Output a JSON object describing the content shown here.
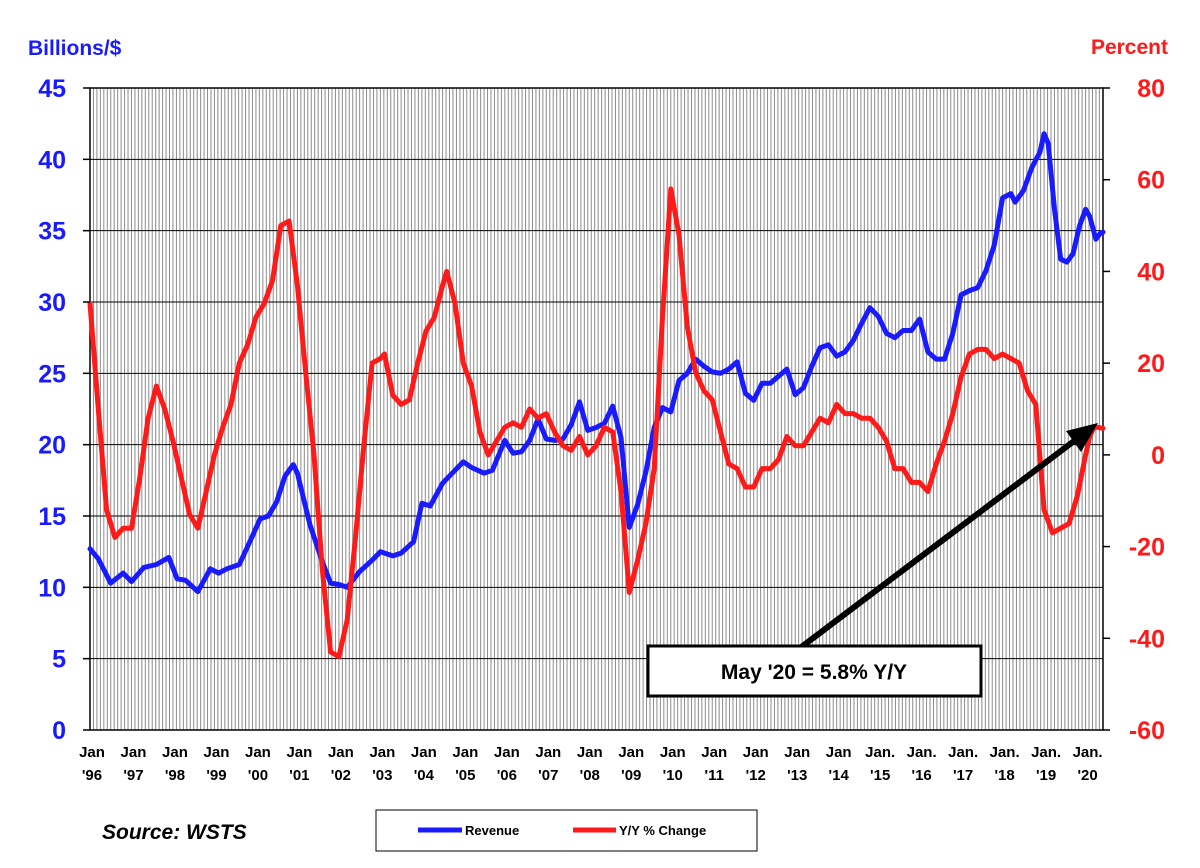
{
  "chart_data": {
    "type": "line",
    "left_axis": {
      "title": "Billions/$",
      "ticks": [
        "45",
        "40",
        "35",
        "30",
        "25",
        "20",
        "15",
        "10",
        "5",
        "0"
      ],
      "ylim": [
        0,
        45
      ]
    },
    "right_axis": {
      "title": "Percent",
      "ticks": [
        "80",
        "60",
        "40",
        "20",
        "0",
        "-20",
        "-40",
        "-60"
      ],
      "ylim": [
        -60,
        80
      ]
    },
    "x_ticks": [
      [
        "Jan",
        "'96"
      ],
      [
        "Jan",
        "'97"
      ],
      [
        "Jan",
        "'98"
      ],
      [
        "Jan",
        "'99"
      ],
      [
        "Jan",
        "'00"
      ],
      [
        "Jan",
        "'01"
      ],
      [
        "Jan",
        "'02"
      ],
      [
        "Jan",
        "'03"
      ],
      [
        "Jan",
        "'04"
      ],
      [
        "Jan",
        "'05"
      ],
      [
        "Jan",
        "'06"
      ],
      [
        "Jan",
        "'07"
      ],
      [
        "Jan",
        "'08"
      ],
      [
        "Jan",
        "'09"
      ],
      [
        "Jan",
        "'10"
      ],
      [
        "Jan",
        "'11"
      ],
      [
        "Jan",
        "'12"
      ],
      [
        "Jan",
        "'13"
      ],
      [
        "Jan",
        "'14"
      ],
      [
        "Jan.",
        "'15"
      ],
      [
        "Jan.",
        "'16"
      ],
      [
        "Jan.",
        "'17"
      ],
      [
        "Jan.",
        "'18"
      ],
      [
        "Jan.",
        "'19"
      ],
      [
        "Jan.",
        "'20"
      ]
    ],
    "x_start": 1996.0,
    "x_end": 2020.42,
    "grid": "vertical monthly lines, horizontal lines at left-axis ticks",
    "series": [
      {
        "name": "Revenue",
        "axis": "left",
        "color": "#1a1aff",
        "points": [
          [
            1996.0,
            12.7
          ],
          [
            1996.2,
            12.0
          ],
          [
            1996.5,
            10.3
          ],
          [
            1996.8,
            11.0
          ],
          [
            1997.0,
            10.4
          ],
          [
            1997.3,
            11.4
          ],
          [
            1997.6,
            11.6
          ],
          [
            1997.9,
            12.1
          ],
          [
            1998.1,
            10.6
          ],
          [
            1998.3,
            10.5
          ],
          [
            1998.6,
            9.7
          ],
          [
            1998.9,
            11.3
          ],
          [
            1999.1,
            11.0
          ],
          [
            1999.3,
            11.3
          ],
          [
            1999.6,
            11.6
          ],
          [
            1999.9,
            13.5
          ],
          [
            2000.1,
            14.8
          ],
          [
            2000.3,
            15.0
          ],
          [
            2000.5,
            16.0
          ],
          [
            2000.7,
            17.8
          ],
          [
            2000.9,
            18.6
          ],
          [
            2001.0,
            18.0
          ],
          [
            2001.3,
            14.4
          ],
          [
            2001.6,
            11.8
          ],
          [
            2001.8,
            10.3
          ],
          [
            2002.0,
            10.2
          ],
          [
            2002.2,
            10.0
          ],
          [
            2002.5,
            11.1
          ],
          [
            2002.8,
            11.9
          ],
          [
            2003.0,
            12.5
          ],
          [
            2003.3,
            12.2
          ],
          [
            2003.5,
            12.4
          ],
          [
            2003.8,
            13.2
          ],
          [
            2004.0,
            15.9
          ],
          [
            2004.2,
            15.7
          ],
          [
            2004.5,
            17.3
          ],
          [
            2004.8,
            18.2
          ],
          [
            2005.0,
            18.8
          ],
          [
            2005.2,
            18.4
          ],
          [
            2005.5,
            18.0
          ],
          [
            2005.7,
            18.2
          ],
          [
            2006.0,
            20.3
          ],
          [
            2006.2,
            19.4
          ],
          [
            2006.4,
            19.5
          ],
          [
            2006.6,
            20.3
          ],
          [
            2006.8,
            21.8
          ],
          [
            2007.0,
            20.4
          ],
          [
            2007.2,
            20.3
          ],
          [
            2007.4,
            20.4
          ],
          [
            2007.6,
            21.4
          ],
          [
            2007.8,
            23.0
          ],
          [
            2008.0,
            21.0
          ],
          [
            2008.2,
            21.2
          ],
          [
            2008.4,
            21.5
          ],
          [
            2008.6,
            22.7
          ],
          [
            2008.8,
            20.5
          ],
          [
            2009.0,
            14.2
          ],
          [
            2009.2,
            15.8
          ],
          [
            2009.4,
            18.1
          ],
          [
            2009.6,
            21.2
          ],
          [
            2009.8,
            22.6
          ],
          [
            2010.0,
            22.3
          ],
          [
            2010.2,
            24.5
          ],
          [
            2010.4,
            25.0
          ],
          [
            2010.6,
            26.0
          ],
          [
            2010.8,
            25.5
          ],
          [
            2011.0,
            25.1
          ],
          [
            2011.2,
            25.0
          ],
          [
            2011.4,
            25.3
          ],
          [
            2011.6,
            25.8
          ],
          [
            2011.8,
            23.6
          ],
          [
            2012.0,
            23.1
          ],
          [
            2012.2,
            24.3
          ],
          [
            2012.4,
            24.3
          ],
          [
            2012.6,
            24.8
          ],
          [
            2012.8,
            25.3
          ],
          [
            2013.0,
            23.5
          ],
          [
            2013.2,
            24.0
          ],
          [
            2013.4,
            25.5
          ],
          [
            2013.6,
            26.8
          ],
          [
            2013.8,
            27.0
          ],
          [
            2014.0,
            26.2
          ],
          [
            2014.2,
            26.5
          ],
          [
            2014.4,
            27.3
          ],
          [
            2014.6,
            28.5
          ],
          [
            2014.8,
            29.6
          ],
          [
            2015.0,
            29.0
          ],
          [
            2015.2,
            27.8
          ],
          [
            2015.4,
            27.5
          ],
          [
            2015.6,
            28.0
          ],
          [
            2015.8,
            28.0
          ],
          [
            2016.0,
            28.8
          ],
          [
            2016.2,
            26.5
          ],
          [
            2016.4,
            26.0
          ],
          [
            2016.6,
            26.0
          ],
          [
            2016.8,
            27.8
          ],
          [
            2017.0,
            30.5
          ],
          [
            2017.2,
            30.8
          ],
          [
            2017.4,
            31.0
          ],
          [
            2017.6,
            32.2
          ],
          [
            2017.8,
            34.0
          ],
          [
            2018.0,
            37.3
          ],
          [
            2018.2,
            37.6
          ],
          [
            2018.3,
            37.0
          ],
          [
            2018.5,
            37.8
          ],
          [
            2018.7,
            39.4
          ],
          [
            2018.9,
            40.5
          ],
          [
            2019.0,
            41.8
          ],
          [
            2019.1,
            41.1
          ],
          [
            2019.25,
            36.5
          ],
          [
            2019.4,
            33.0
          ],
          [
            2019.55,
            32.8
          ],
          [
            2019.7,
            33.4
          ],
          [
            2019.85,
            35.3
          ],
          [
            2020.0,
            36.5
          ],
          [
            2020.1,
            36.0
          ],
          [
            2020.25,
            34.4
          ],
          [
            2020.35,
            34.8
          ],
          [
            2020.42,
            34.9
          ]
        ]
      },
      {
        "name": "Y/Y % Change",
        "axis": "right",
        "color": "#ff1a1a",
        "points": [
          [
            1996.0,
            33.0
          ],
          [
            1996.2,
            10.0
          ],
          [
            1996.4,
            -12.0
          ],
          [
            1996.6,
            -18.0
          ],
          [
            1996.8,
            -16.0
          ],
          [
            1997.0,
            -16.0
          ],
          [
            1997.2,
            -5.0
          ],
          [
            1997.4,
            8.0
          ],
          [
            1997.6,
            15.0
          ],
          [
            1997.8,
            10.0
          ],
          [
            1998.0,
            3.0
          ],
          [
            1998.2,
            -5.0
          ],
          [
            1998.4,
            -13.0
          ],
          [
            1998.6,
            -16.0
          ],
          [
            1998.8,
            -8.0
          ],
          [
            1999.0,
            0.0
          ],
          [
            1999.2,
            6.0
          ],
          [
            1999.4,
            11.0
          ],
          [
            1999.6,
            20.0
          ],
          [
            1999.8,
            24.0
          ],
          [
            2000.0,
            30.0
          ],
          [
            2000.2,
            33.0
          ],
          [
            2000.4,
            38.0
          ],
          [
            2000.6,
            50.0
          ],
          [
            2000.8,
            51.0
          ],
          [
            2001.0,
            37.0
          ],
          [
            2001.2,
            18.0
          ],
          [
            2001.4,
            0.0
          ],
          [
            2001.6,
            -25.0
          ],
          [
            2001.8,
            -43.0
          ],
          [
            2002.0,
            -44.0
          ],
          [
            2002.2,
            -36.0
          ],
          [
            2002.4,
            -18.0
          ],
          [
            2002.6,
            2.0
          ],
          [
            2002.8,
            20.0
          ],
          [
            2003.0,
            21.0
          ],
          [
            2003.1,
            22.0
          ],
          [
            2003.3,
            13.0
          ],
          [
            2003.5,
            11.0
          ],
          [
            2003.7,
            12.0
          ],
          [
            2003.9,
            20.0
          ],
          [
            2004.1,
            27.0
          ],
          [
            2004.3,
            30.0
          ],
          [
            2004.5,
            37.0
          ],
          [
            2004.6,
            40.0
          ],
          [
            2004.8,
            33.0
          ],
          [
            2005.0,
            20.0
          ],
          [
            2005.2,
            15.0
          ],
          [
            2005.4,
            5.0
          ],
          [
            2005.6,
            0.0
          ],
          [
            2005.8,
            3.0
          ],
          [
            2006.0,
            6.0
          ],
          [
            2006.2,
            7.0
          ],
          [
            2006.4,
            6.0
          ],
          [
            2006.6,
            10.0
          ],
          [
            2006.8,
            8.0
          ],
          [
            2007.0,
            9.0
          ],
          [
            2007.2,
            5.0
          ],
          [
            2007.4,
            2.0
          ],
          [
            2007.6,
            1.0
          ],
          [
            2007.8,
            4.0
          ],
          [
            2008.0,
            0.0
          ],
          [
            2008.2,
            2.0
          ],
          [
            2008.4,
            6.0
          ],
          [
            2008.6,
            5.0
          ],
          [
            2008.8,
            -8.0
          ],
          [
            2009.0,
            -30.0
          ],
          [
            2009.2,
            -23.0
          ],
          [
            2009.4,
            -15.0
          ],
          [
            2009.6,
            -3.0
          ],
          [
            2009.8,
            30.0
          ],
          [
            2010.0,
            58.0
          ],
          [
            2010.2,
            48.0
          ],
          [
            2010.4,
            28.0
          ],
          [
            2010.6,
            18.0
          ],
          [
            2010.8,
            14.0
          ],
          [
            2011.0,
            12.0
          ],
          [
            2011.2,
            5.0
          ],
          [
            2011.4,
            -2.0
          ],
          [
            2011.6,
            -3.0
          ],
          [
            2011.8,
            -7.0
          ],
          [
            2012.0,
            -7.0
          ],
          [
            2012.2,
            -3.0
          ],
          [
            2012.4,
            -3.0
          ],
          [
            2012.6,
            -1.0
          ],
          [
            2012.8,
            4.0
          ],
          [
            2013.0,
            2.0
          ],
          [
            2013.2,
            2.0
          ],
          [
            2013.4,
            5.0
          ],
          [
            2013.6,
            8.0
          ],
          [
            2013.8,
            7.0
          ],
          [
            2014.0,
            11.0
          ],
          [
            2014.2,
            9.0
          ],
          [
            2014.4,
            9.0
          ],
          [
            2014.6,
            8.0
          ],
          [
            2014.8,
            8.0
          ],
          [
            2015.0,
            6.0
          ],
          [
            2015.2,
            3.0
          ],
          [
            2015.4,
            -3.0
          ],
          [
            2015.6,
            -3.0
          ],
          [
            2015.8,
            -6.0
          ],
          [
            2016.0,
            -6.0
          ],
          [
            2016.2,
            -8.0
          ],
          [
            2016.4,
            -2.0
          ],
          [
            2016.6,
            3.0
          ],
          [
            2016.8,
            9.0
          ],
          [
            2017.0,
            17.0
          ],
          [
            2017.2,
            22.0
          ],
          [
            2017.4,
            23.0
          ],
          [
            2017.6,
            23.0
          ],
          [
            2017.8,
            21.0
          ],
          [
            2018.0,
            22.0
          ],
          [
            2018.2,
            21.0
          ],
          [
            2018.4,
            20.0
          ],
          [
            2018.6,
            14.0
          ],
          [
            2018.8,
            11.0
          ],
          [
            2019.0,
            -12.0
          ],
          [
            2019.2,
            -17.0
          ],
          [
            2019.4,
            -16.0
          ],
          [
            2019.6,
            -15.0
          ],
          [
            2019.8,
            -9.0
          ],
          [
            2020.0,
            0.0
          ],
          [
            2020.1,
            4.0
          ],
          [
            2020.2,
            6.0
          ],
          [
            2020.3,
            6.0
          ],
          [
            2020.42,
            5.8
          ]
        ]
      }
    ],
    "annotation": {
      "text": "May '20 = 5.8% Y/Y",
      "x": 2020.42,
      "y": 5.8
    },
    "legend": {
      "placement": "bottom-center",
      "items": [
        "Revenue",
        "Y/Y % Change"
      ]
    },
    "source": "Source: WSTS"
  }
}
